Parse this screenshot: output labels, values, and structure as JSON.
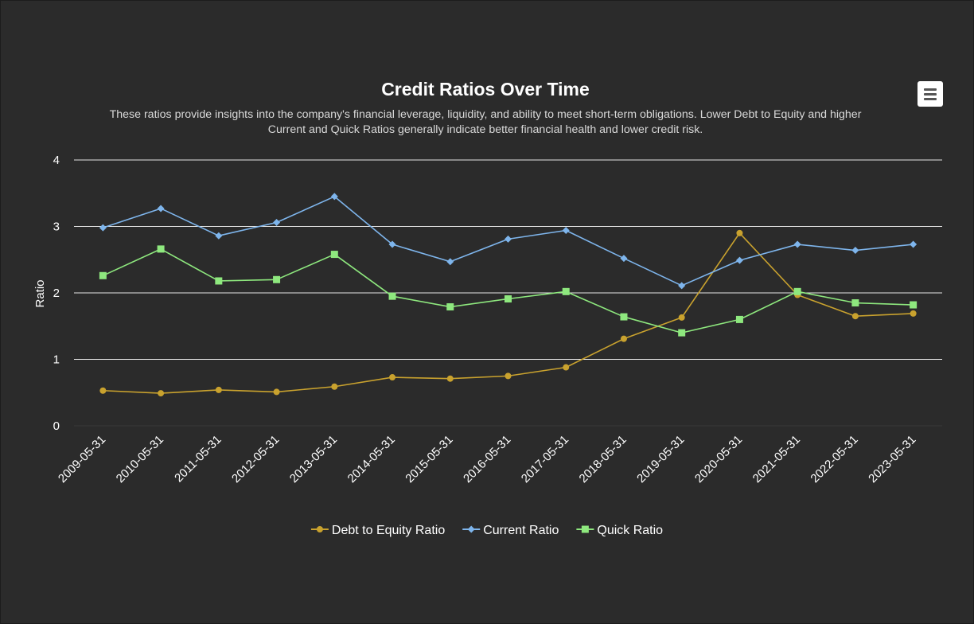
{
  "chart_data": {
    "type": "line",
    "title": "Credit Ratios Over Time",
    "subtitle_lines": [
      "These ratios provide insights into the company's financial leverage, liquidity, and ability to meet short-term obligations. Lower Debt to Equity and higher",
      "Current and Quick Ratios generally indicate better financial health and lower credit risk."
    ],
    "xlabel": "",
    "ylabel": "Ratio",
    "ylim": [
      0,
      4
    ],
    "yticks": [
      0,
      1,
      2,
      3,
      4
    ],
    "grid": true,
    "legend_position": "bottom-center",
    "categories": [
      "2009-05-31",
      "2010-05-31",
      "2011-05-31",
      "2012-05-31",
      "2013-05-31",
      "2014-05-31",
      "2015-05-31",
      "2016-05-31",
      "2017-05-31",
      "2018-05-31",
      "2019-05-31",
      "2020-05-31",
      "2021-05-31",
      "2022-05-31",
      "2023-05-31"
    ],
    "series": [
      {
        "name": "Debt to Equity Ratio",
        "color": "#c9a22e",
        "marker": "circle",
        "values": [
          0.53,
          0.49,
          0.54,
          0.51,
          0.59,
          0.73,
          0.71,
          0.75,
          0.88,
          1.31,
          1.63,
          2.9,
          1.97,
          1.65,
          1.69
        ]
      },
      {
        "name": "Current Ratio",
        "color": "#7eb5ec",
        "marker": "diamond",
        "values": [
          2.98,
          3.27,
          2.86,
          3.06,
          3.45,
          2.73,
          2.47,
          2.81,
          2.94,
          2.52,
          2.11,
          2.49,
          2.73,
          2.64,
          2.73
        ]
      },
      {
        "name": "Quick Ratio",
        "color": "#8ee87e",
        "marker": "square",
        "values": [
          2.26,
          2.66,
          2.18,
          2.2,
          2.58,
          1.95,
          1.79,
          1.91,
          2.02,
          1.64,
          1.4,
          1.6,
          2.02,
          1.85,
          1.82
        ]
      }
    ]
  },
  "colors": {
    "background": "#2b2b2b",
    "text": "#ffffff",
    "subtitle": "#d9d9d9",
    "gridline": "#ffffff"
  },
  "menu": {
    "icon": "hamburger-menu-icon"
  }
}
